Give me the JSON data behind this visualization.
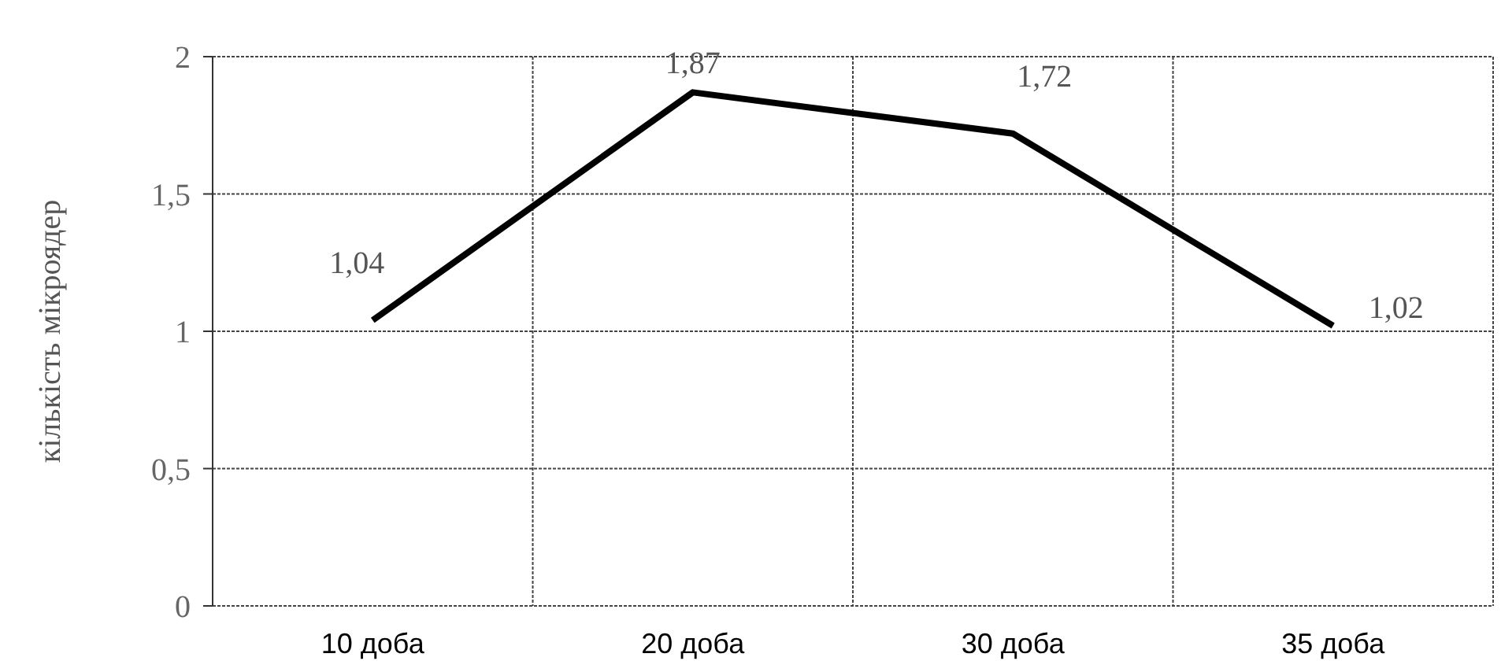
{
  "chart_data": {
    "type": "line",
    "ylabel": "кількість мікроядер",
    "categories": [
      "10 доба",
      "20 доба",
      "30 доба",
      "35 доба"
    ],
    "series": [
      {
        "color": "#000000",
        "values": [
          1.04,
          1.87,
          1.72,
          1.02
        ]
      }
    ],
    "value_labels": [
      "1,04",
      "1,87",
      "1,72",
      "1,02"
    ],
    "ylim": [
      0,
      2
    ],
    "yticks": [
      0,
      {
        "value": 0.5,
        "label": "0,5"
      },
      1,
      {
        "value": 1.5,
        "label": "1,5"
      },
      2
    ],
    "grid": true,
    "marker": "none",
    "line_style": "solid"
  }
}
